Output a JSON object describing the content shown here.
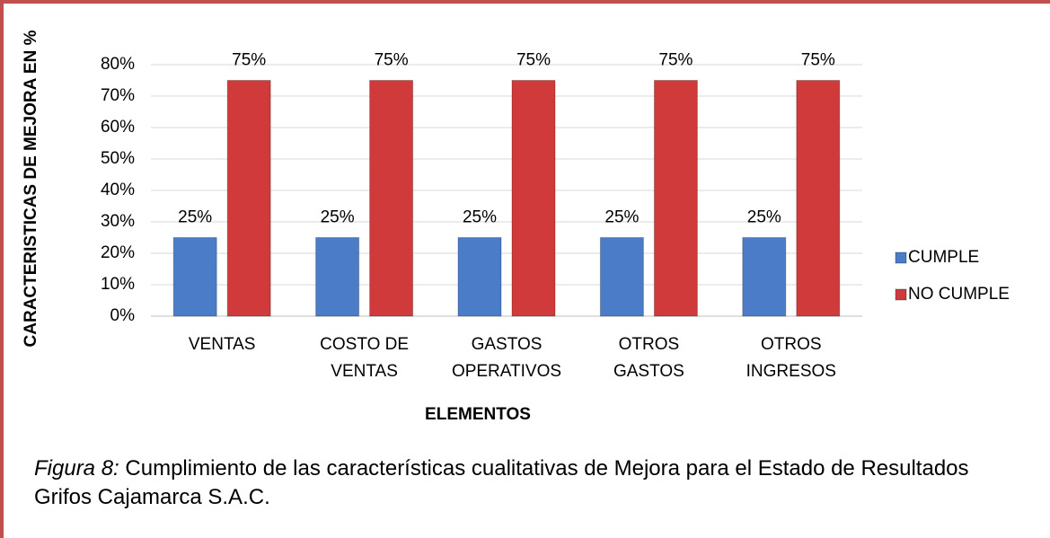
{
  "chart_data": {
    "type": "bar",
    "y_label": "CARACTERISTICAS DE MEJORA EN %",
    "x_label": "ELEMENTOS",
    "categories": [
      "VENTAS",
      "COSTO DE VENTAS",
      "GASTOS OPERATIVOS",
      "OTROS GASTOS",
      "OTROS INGRESOS"
    ],
    "series": [
      {
        "name": "CUMPLE",
        "color": "#4a7cc7",
        "values": [
          25,
          25,
          25,
          25,
          25
        ],
        "value_labels": [
          "25%",
          "25%",
          "25%",
          "25%",
          "25%"
        ]
      },
      {
        "name": "NO CUMPLE",
        "color": "#d03a3a",
        "values": [
          75,
          75,
          75,
          75,
          75
        ],
        "value_labels": [
          "75%",
          "75%",
          "75%",
          "75%",
          "75%"
        ]
      }
    ],
    "ylim": [
      0,
      80
    ],
    "yticks": [
      {
        "value": 0,
        "label": "0%"
      },
      {
        "value": 10,
        "label": "10%"
      },
      {
        "value": 20,
        "label": "20%"
      },
      {
        "value": 30,
        "label": "30%"
      },
      {
        "value": 40,
        "label": "40%"
      },
      {
        "value": 50,
        "label": "50%"
      },
      {
        "value": 60,
        "label": "60%"
      },
      {
        "value": 70,
        "label": "70%"
      },
      {
        "value": 80,
        "label": "80%"
      }
    ],
    "grid": true,
    "legend": "right"
  },
  "caption": {
    "label": "Figura 8:",
    "text": "Cumplimiento de las características cualitativas de Mejora para el Estado de Resultados Grifos Cajamarca S.A.C."
  }
}
